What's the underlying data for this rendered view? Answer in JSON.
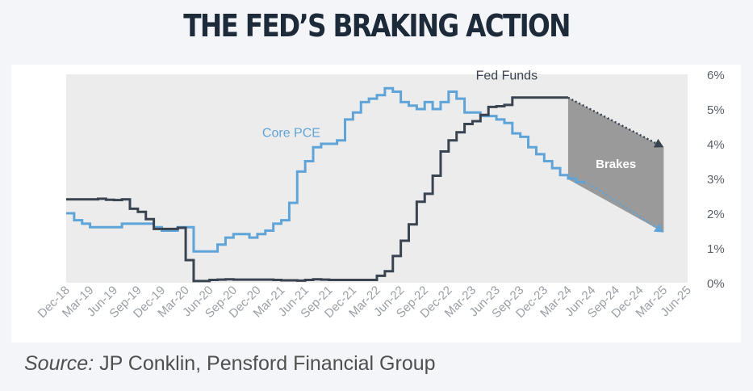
{
  "title": "THE FED’S BRAKING ACTION",
  "source": {
    "label": "Source:",
    "text": "JP Conklin, Pensford Financial Group"
  },
  "colors": {
    "fed_funds": "#3a4350",
    "core_pce": "#5fa4d8",
    "plot_bg": "#ececec",
    "brakes": "#9a9a9a",
    "panel": "#ffffff",
    "page": "#f4f5f8"
  },
  "chart_data": {
    "type": "line",
    "x_tick_labels": [
      "Dec-18",
      "Mar-19",
      "Jun-19",
      "Sep-19",
      "Dec-19",
      "Mar-20",
      "Jun-20",
      "Sep-20",
      "Dec-20",
      "Mar-21",
      "Jun-21",
      "Sep-21",
      "Dec-21",
      "Mar-22",
      "Jun-22",
      "Sep-22",
      "Dec-22",
      "Mar-23",
      "Jun-23",
      "Sep-23",
      "Dec-23",
      "Mar-24",
      "Jun-24",
      "Sep-24",
      "Dec-24",
      "Mar-25",
      "Jun-25"
    ],
    "y_tick_labels": [
      "0%",
      "1%",
      "2%",
      "3%",
      "4%",
      "5%",
      "6%"
    ],
    "ylim": [
      0,
      6
    ],
    "xlim": [
      "2018-12",
      "2025-06"
    ],
    "grid": false,
    "series": [
      {
        "name": "Fed Funds",
        "points": [
          [
            "2018-12",
            2.4
          ],
          [
            "2019-01",
            2.4
          ],
          [
            "2019-02",
            2.4
          ],
          [
            "2019-03",
            2.4
          ],
          [
            "2019-04",
            2.42
          ],
          [
            "2019-05",
            2.39
          ],
          [
            "2019-06",
            2.38
          ],
          [
            "2019-07",
            2.4
          ],
          [
            "2019-08",
            2.13
          ],
          [
            "2019-09",
            2.04
          ],
          [
            "2019-10",
            1.83
          ],
          [
            "2019-11",
            1.55
          ],
          [
            "2019-12",
            1.55
          ],
          [
            "2020-01",
            1.55
          ],
          [
            "2020-02",
            1.58
          ],
          [
            "2020-03",
            0.65
          ],
          [
            "2020-04",
            0.05
          ],
          [
            "2020-05",
            0.05
          ],
          [
            "2020-06",
            0.08
          ],
          [
            "2020-07",
            0.09
          ],
          [
            "2020-08",
            0.1
          ],
          [
            "2020-09",
            0.09
          ],
          [
            "2020-10",
            0.09
          ],
          [
            "2020-11",
            0.09
          ],
          [
            "2020-12",
            0.09
          ],
          [
            "2021-01",
            0.09
          ],
          [
            "2021-02",
            0.08
          ],
          [
            "2021-03",
            0.07
          ],
          [
            "2021-04",
            0.07
          ],
          [
            "2021-05",
            0.06
          ],
          [
            "2021-06",
            0.08
          ],
          [
            "2021-07",
            0.1
          ],
          [
            "2021-08",
            0.09
          ],
          [
            "2021-09",
            0.08
          ],
          [
            "2021-10",
            0.08
          ],
          [
            "2021-11",
            0.08
          ],
          [
            "2021-12",
            0.08
          ],
          [
            "2022-01",
            0.08
          ],
          [
            "2022-02",
            0.08
          ],
          [
            "2022-03",
            0.2
          ],
          [
            "2022-04",
            0.33
          ],
          [
            "2022-05",
            0.77
          ],
          [
            "2022-06",
            1.21
          ],
          [
            "2022-07",
            1.68
          ],
          [
            "2022-08",
            2.33
          ],
          [
            "2022-09",
            2.56
          ],
          [
            "2022-10",
            3.08
          ],
          [
            "2022-11",
            3.78
          ],
          [
            "2022-12",
            4.1
          ],
          [
            "2023-01",
            4.33
          ],
          [
            "2023-02",
            4.57
          ],
          [
            "2023-03",
            4.65
          ],
          [
            "2023-04",
            4.83
          ],
          [
            "2023-05",
            5.06
          ],
          [
            "2023-06",
            5.08
          ],
          [
            "2023-07",
            5.12
          ],
          [
            "2023-08",
            5.33
          ],
          [
            "2023-09",
            5.33
          ],
          [
            "2023-10",
            5.33
          ],
          [
            "2023-11",
            5.33
          ],
          [
            "2023-12",
            5.33
          ],
          [
            "2024-01",
            5.33
          ],
          [
            "2024-02",
            5.33
          ],
          [
            "2024-03",
            5.33
          ]
        ]
      },
      {
        "name": "Core PCE",
        "points": [
          [
            "2018-12",
            2.0
          ],
          [
            "2019-01",
            1.8
          ],
          [
            "2019-02",
            1.7
          ],
          [
            "2019-03",
            1.6
          ],
          [
            "2019-04",
            1.6
          ],
          [
            "2019-05",
            1.6
          ],
          [
            "2019-06",
            1.6
          ],
          [
            "2019-07",
            1.7
          ],
          [
            "2019-08",
            1.7
          ],
          [
            "2019-09",
            1.7
          ],
          [
            "2019-10",
            1.7
          ],
          [
            "2019-11",
            1.6
          ],
          [
            "2019-12",
            1.5
          ],
          [
            "2020-01",
            1.5
          ],
          [
            "2020-02",
            1.6
          ],
          [
            "2020-03",
            1.6
          ],
          [
            "2020-04",
            0.9
          ],
          [
            "2020-05",
            0.9
          ],
          [
            "2020-06",
            0.9
          ],
          [
            "2020-07",
            1.1
          ],
          [
            "2020-08",
            1.3
          ],
          [
            "2020-09",
            1.4
          ],
          [
            "2020-10",
            1.4
          ],
          [
            "2020-11",
            1.3
          ],
          [
            "2020-12",
            1.4
          ],
          [
            "2021-01",
            1.5
          ],
          [
            "2021-02",
            1.7
          ],
          [
            "2021-03",
            1.8
          ],
          [
            "2021-04",
            2.3
          ],
          [
            "2021-05",
            3.2
          ],
          [
            "2021-06",
            3.5
          ],
          [
            "2021-07",
            3.9
          ],
          [
            "2021-08",
            4.0
          ],
          [
            "2021-09",
            4.0
          ],
          [
            "2021-10",
            4.1
          ],
          [
            "2021-11",
            4.7
          ],
          [
            "2021-12",
            4.9
          ],
          [
            "2022-01",
            5.2
          ],
          [
            "2022-02",
            5.3
          ],
          [
            "2022-03",
            5.4
          ],
          [
            "2022-04",
            5.6
          ],
          [
            "2022-05",
            5.5
          ],
          [
            "2022-06",
            5.2
          ],
          [
            "2022-07",
            5.1
          ],
          [
            "2022-08",
            5.0
          ],
          [
            "2022-09",
            5.2
          ],
          [
            "2022-10",
            5.0
          ],
          [
            "2022-11",
            5.2
          ],
          [
            "2022-12",
            5.5
          ],
          [
            "2023-01",
            5.3
          ],
          [
            "2023-02",
            4.9
          ],
          [
            "2023-03",
            4.9
          ],
          [
            "2023-04",
            4.8
          ],
          [
            "2023-05",
            4.8
          ],
          [
            "2023-06",
            4.7
          ],
          [
            "2023-07",
            4.6
          ],
          [
            "2023-08",
            4.3
          ],
          [
            "2023-09",
            4.2
          ],
          [
            "2023-10",
            3.9
          ],
          [
            "2023-11",
            3.7
          ],
          [
            "2023-12",
            3.5
          ],
          [
            "2024-01",
            3.3
          ],
          [
            "2024-02",
            3.1
          ],
          [
            "2024-03",
            3.0
          ],
          [
            "2024-04",
            2.9
          ],
          [
            "2024-05",
            2.85
          ]
        ]
      }
    ],
    "projections": [
      {
        "series": "Fed Funds",
        "from": [
          "2024-03",
          5.33
        ],
        "to": [
          "2025-03",
          3.9
        ],
        "style": "dotted-arrow"
      },
      {
        "series": "Core PCE",
        "from": [
          "2024-05",
          2.85
        ],
        "to": [
          "2025-03",
          1.45
        ],
        "style": "dotted-arrow"
      }
    ],
    "brakes_area": {
      "label": "Brakes",
      "x_from": "2024-03",
      "x_to": "2025-03"
    },
    "annotations": [
      {
        "text": "Fed Funds",
        "series": "Fed Funds"
      },
      {
        "text": "Core PCE",
        "series": "Core PCE"
      }
    ]
  }
}
